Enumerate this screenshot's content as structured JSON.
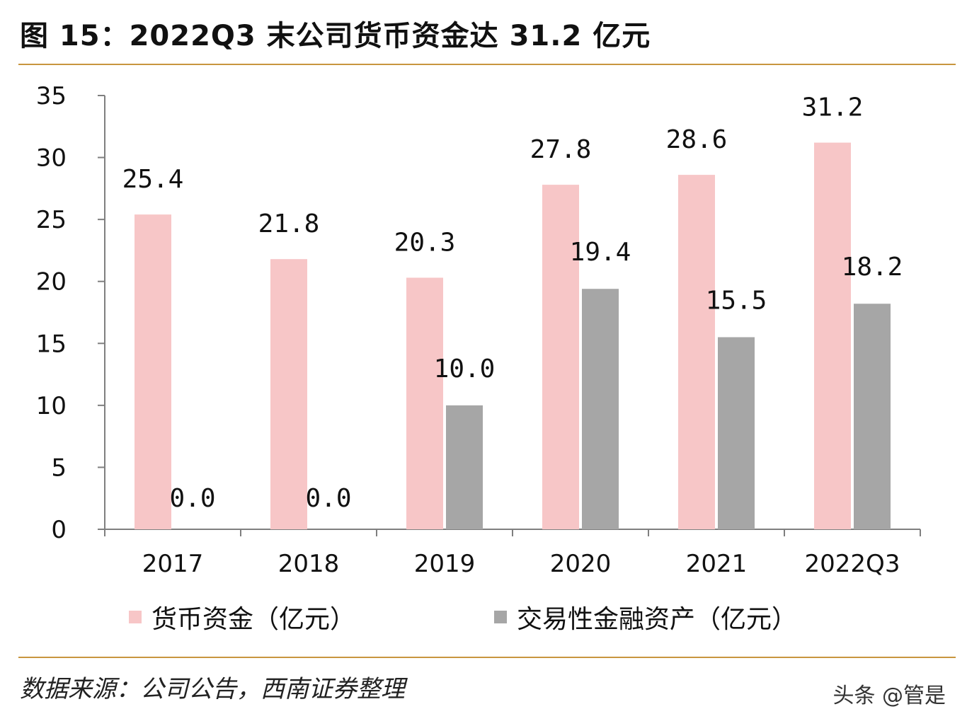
{
  "title": "图 15：2022Q3 末公司货币资金达 31.2 亿元",
  "source": "数据来源：公司公告，西南证券整理",
  "watermark": "头条 @管是",
  "chart_data": {
    "type": "bar",
    "categories": [
      "2017",
      "2018",
      "2019",
      "2020",
      "2021",
      "2022Q3"
    ],
    "series": [
      {
        "name": "货币资金（亿元）",
        "color": "#f7c6c7",
        "values": [
          25.4,
          21.8,
          20.3,
          27.8,
          28.6,
          31.2
        ]
      },
      {
        "name": "交易性金融资产（亿元）",
        "color": "#a6a6a6",
        "values": [
          0.0,
          0.0,
          10.0,
          19.4,
          15.5,
          18.2
        ]
      }
    ],
    "yticks": [
      "0",
      "5",
      "10",
      "15",
      "20",
      "25",
      "30",
      "35"
    ],
    "ylim": [
      0,
      35
    ],
    "data_labels": {
      "series0": [
        "25.4",
        "21.8",
        "20.3",
        "27.8",
        "28.6",
        "31.2"
      ],
      "series1": [
        "0.0",
        "0.0",
        "10.0",
        "19.4",
        "15.5",
        "18.2"
      ]
    },
    "legend_position": "bottom",
    "grid": false,
    "axis_color": "#7f7f7f"
  }
}
